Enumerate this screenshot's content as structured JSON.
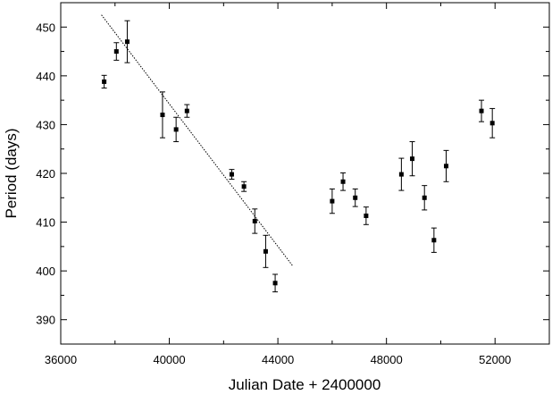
{
  "chart_data": {
    "type": "scatter",
    "title": "",
    "xlabel": "Julian Date + 2400000",
    "ylabel": "Period (days)",
    "xlim": [
      36000,
      54000
    ],
    "ylim": [
      385,
      455
    ],
    "xticks": [
      36000,
      40000,
      44000,
      48000,
      52000
    ],
    "xtick_labels": [
      "36000",
      "40000",
      "44000",
      "48000",
      "52000"
    ],
    "yticks": [
      390,
      400,
      410,
      420,
      430,
      440,
      450
    ],
    "ytick_labels": [
      "390",
      "400",
      "410",
      "420",
      "430",
      "440",
      "450"
    ],
    "grid": false,
    "series": [
      {
        "marker": "square",
        "error_bars": true,
        "points": [
          {
            "x": 37600,
            "y": 438.8,
            "err": 1.3
          },
          {
            "x": 38050,
            "y": 445.0,
            "err": 1.8
          },
          {
            "x": 38450,
            "y": 447.0,
            "err": 4.3
          },
          {
            "x": 39750,
            "y": 432.0,
            "err": 4.7
          },
          {
            "x": 40250,
            "y": 429.0,
            "err": 2.5
          },
          {
            "x": 40650,
            "y": 432.8,
            "err": 1.3
          },
          {
            "x": 42300,
            "y": 419.8,
            "err": 1.0
          },
          {
            "x": 42750,
            "y": 417.3,
            "err": 1.0
          },
          {
            "x": 43150,
            "y": 410.2,
            "err": 2.5
          },
          {
            "x": 43550,
            "y": 404.0,
            "err": 3.3
          },
          {
            "x": 43900,
            "y": 397.5,
            "err": 1.8
          },
          {
            "x": 46000,
            "y": 414.3,
            "err": 2.5
          },
          {
            "x": 46400,
            "y": 418.3,
            "err": 1.8
          },
          {
            "x": 46850,
            "y": 415.0,
            "err": 1.8
          },
          {
            "x": 47250,
            "y": 411.3,
            "err": 1.8
          },
          {
            "x": 48550,
            "y": 419.8,
            "err": 3.3
          },
          {
            "x": 48950,
            "y": 423.0,
            "err": 3.5
          },
          {
            "x": 49400,
            "y": 415.0,
            "err": 2.5
          },
          {
            "x": 49750,
            "y": 406.3,
            "err": 2.5
          },
          {
            "x": 50200,
            "y": 421.5,
            "err": 3.2
          },
          {
            "x": 51500,
            "y": 432.8,
            "err": 2.2
          },
          {
            "x": 51900,
            "y": 430.3,
            "err": 3.0
          }
        ]
      }
    ],
    "fit_line": {
      "style": "dotted",
      "x": [
        37500,
        44550
      ],
      "y": [
        452.5,
        401.0
      ]
    }
  },
  "colors": {
    "background": "#ffffff",
    "axis": "#000000",
    "marker": "#000000"
  }
}
